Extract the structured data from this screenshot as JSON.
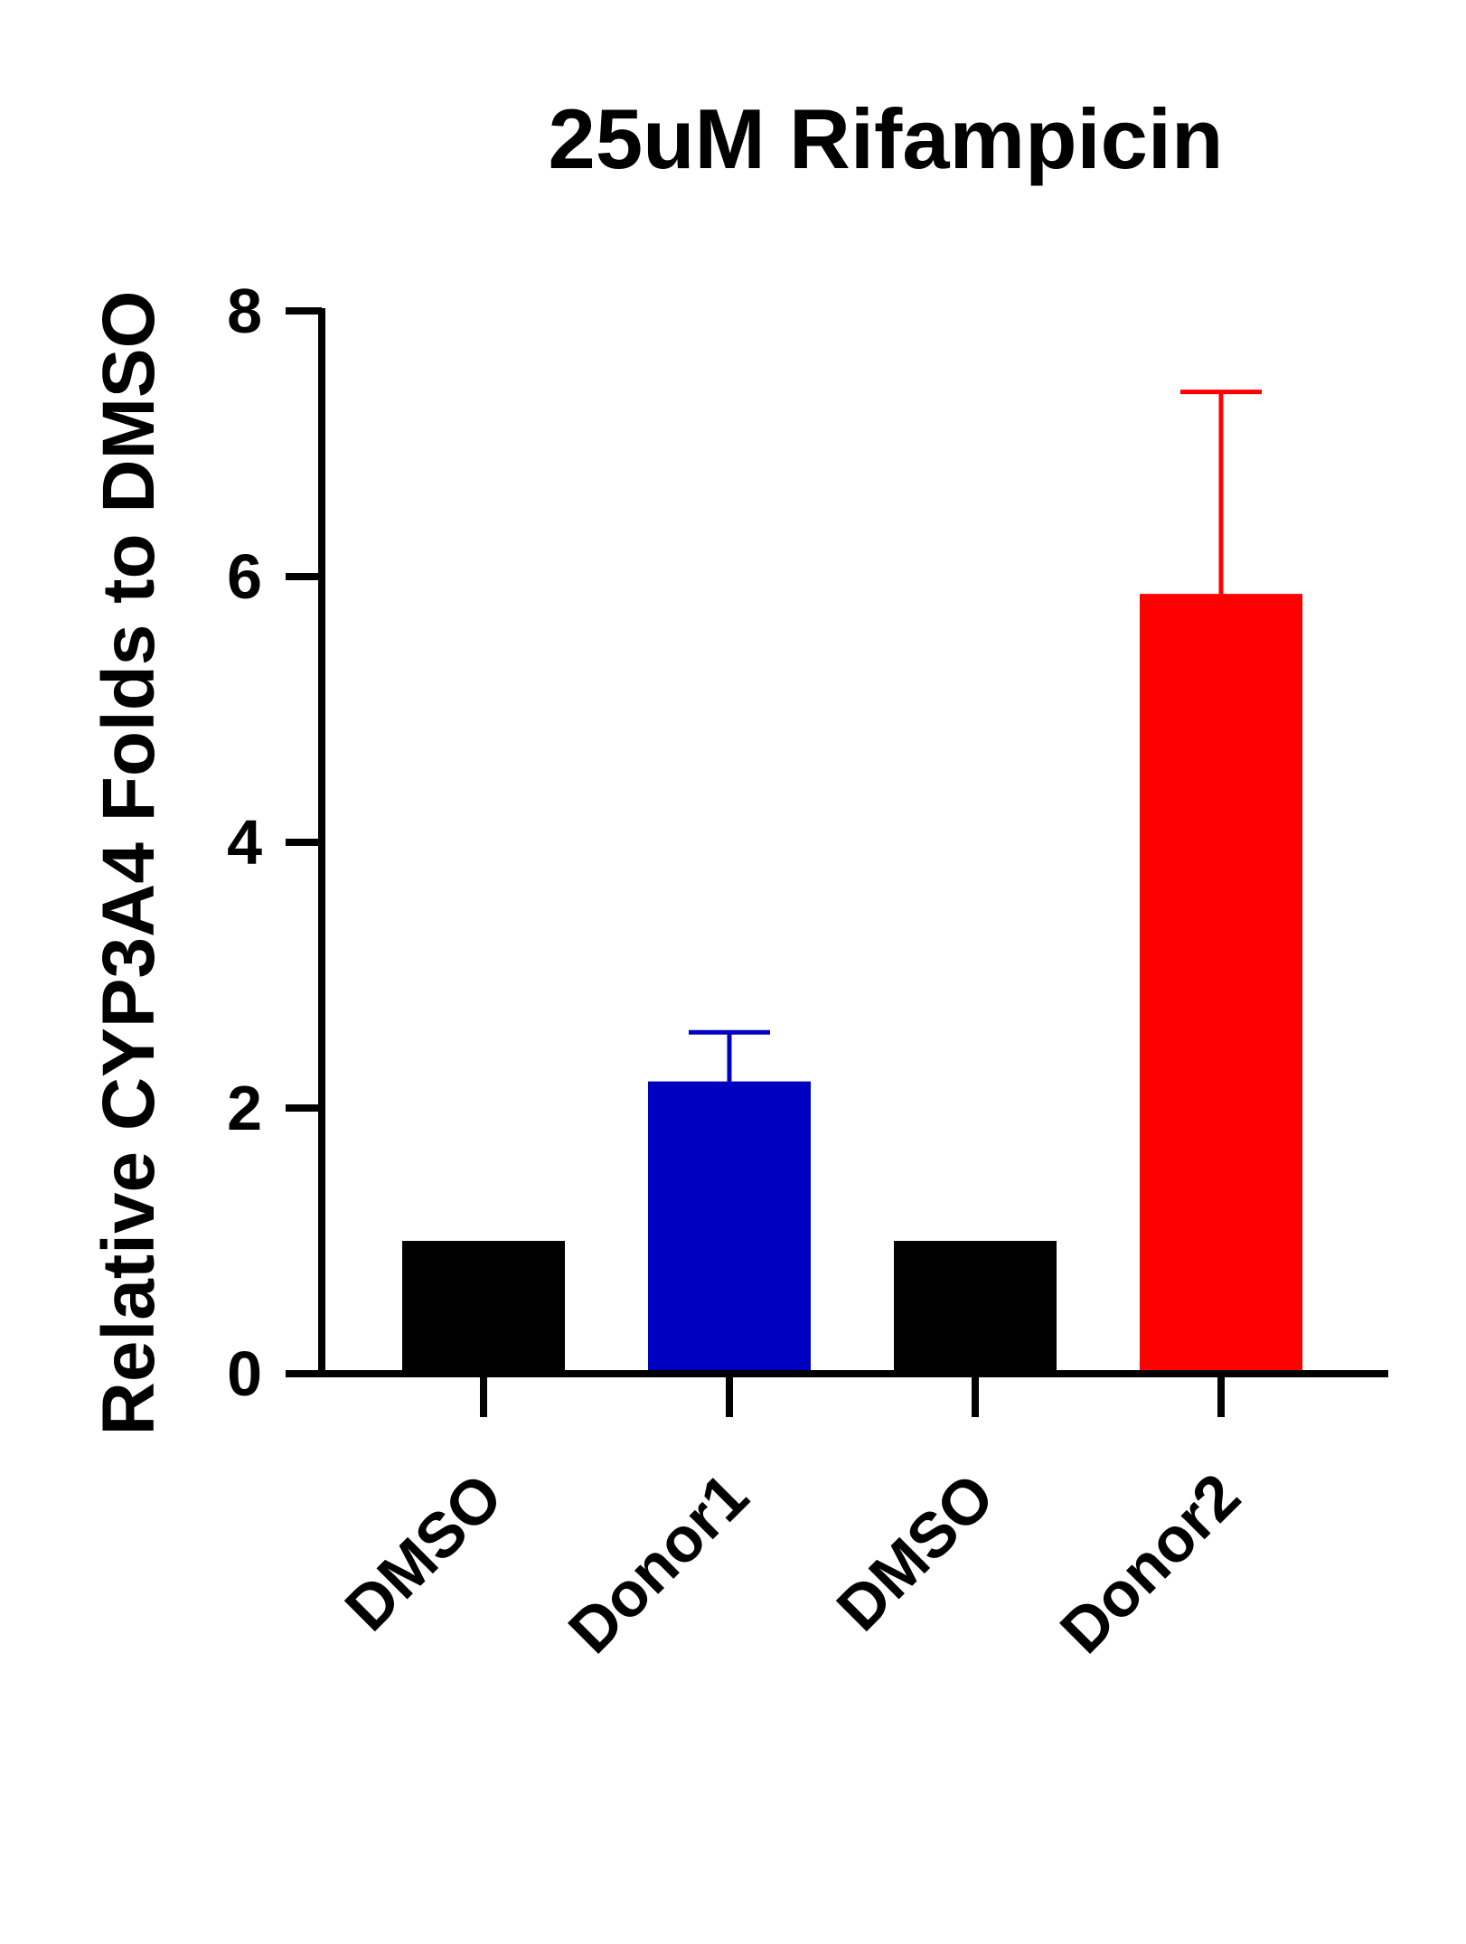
{
  "chart_data": {
    "type": "bar",
    "title": "25uM Rifampicin",
    "xlabel": "",
    "ylabel": "Relative CYP3A4 Folds to DMSO",
    "ylim": [
      0,
      8
    ],
    "yticks": [
      0,
      2,
      4,
      6,
      8
    ],
    "categories": [
      "DMSO",
      "Donor1",
      "DMSO",
      "Donor2"
    ],
    "values": [
      1.0,
      2.2,
      1.0,
      5.87
    ],
    "error_upper": [
      0,
      0.37,
      0,
      1.52
    ],
    "colors": [
      "#000000",
      "#0000C0",
      "#000000",
      "#FF0000"
    ],
    "grid": false,
    "legend": "none"
  }
}
